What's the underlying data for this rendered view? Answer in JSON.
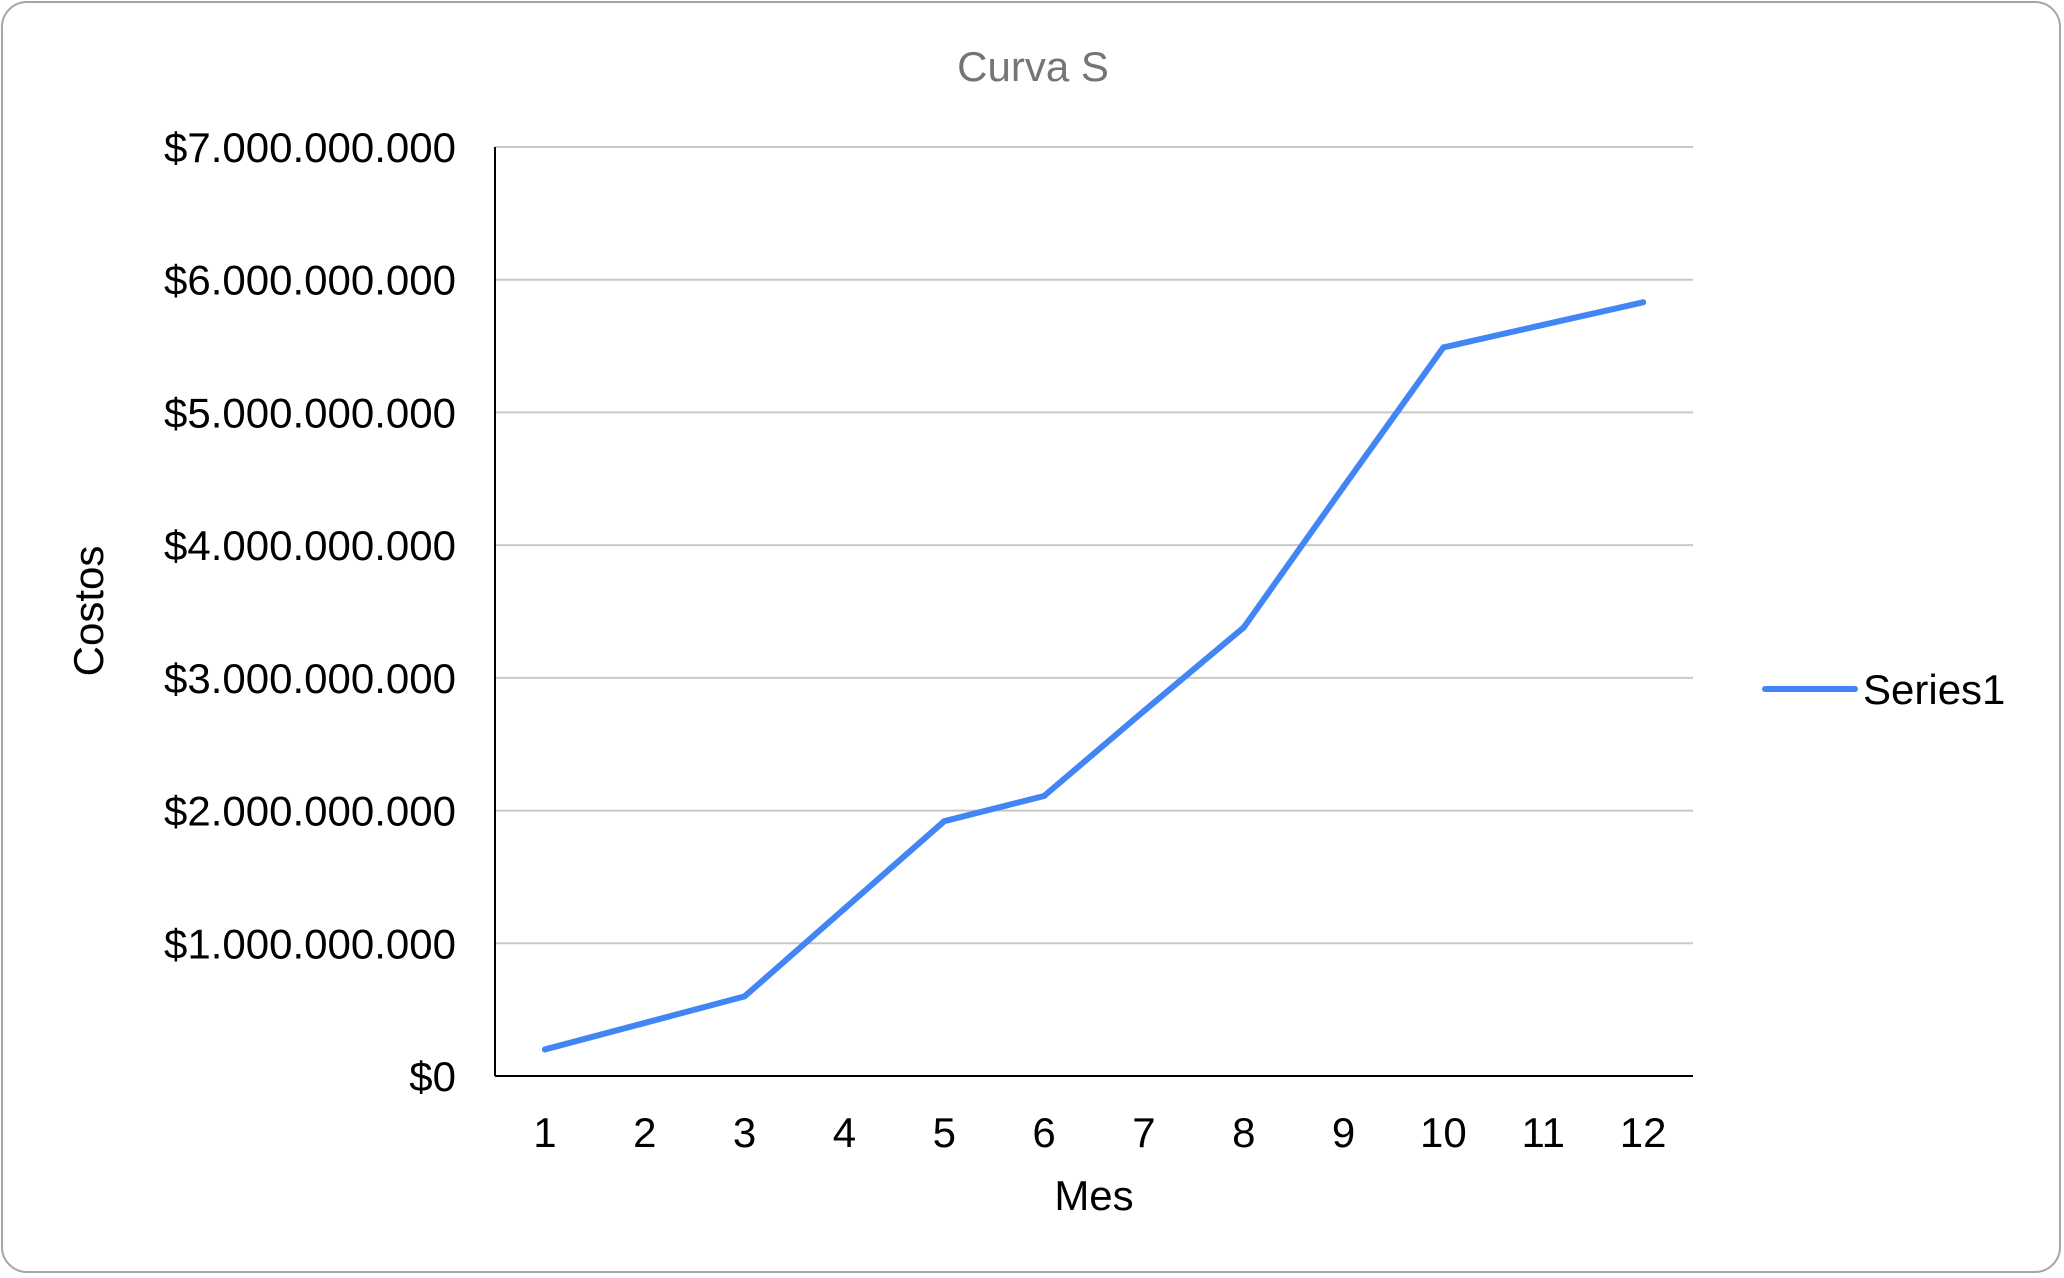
{
  "chart_data": {
    "type": "line",
    "title": "Curva S",
    "xlabel": "Mes",
    "ylabel": "Costos",
    "categories": [
      "1",
      "2",
      "3",
      "4",
      "5",
      "6",
      "7",
      "8",
      "9",
      "10",
      "11",
      "12"
    ],
    "series": [
      {
        "name": "Series1",
        "color": "#4285f4",
        "values": [
          200000000,
          400000000,
          600000000,
          1260000000,
          1920000000,
          2110000000,
          2750000000,
          3380000000,
          4440000000,
          5490000000,
          5660000000,
          5830000000
        ]
      }
    ],
    "ylim": [
      0,
      7000000000
    ],
    "y_ticks": [
      0,
      1000000000,
      2000000000,
      3000000000,
      4000000000,
      5000000000,
      6000000000,
      7000000000
    ],
    "y_tick_labels": [
      "$0",
      "$1.000.000.000",
      "$2.000.000.000",
      "$3.000.000.000",
      "$4.000.000.000",
      "$5.000.000.000",
      "$6.000.000.000",
      "$7.000.000.000"
    ],
    "grid": true,
    "legend_position": "right",
    "colors": {
      "gridline": "#c8c8c8",
      "axis": "#000000",
      "title": "#757575"
    }
  }
}
